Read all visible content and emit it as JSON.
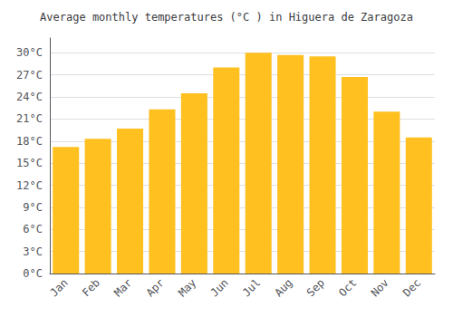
{
  "chart_data": {
    "type": "bar",
    "title": "Average monthly temperatures (°C ) in Higuera de Zaragoza",
    "categories": [
      "Jan",
      "Feb",
      "Mar",
      "Apr",
      "May",
      "Jun",
      "Jul",
      "Aug",
      "Sep",
      "Oct",
      "Nov",
      "Dec"
    ],
    "values": [
      17.2,
      18.3,
      19.7,
      22.3,
      24.5,
      28.0,
      30.0,
      29.7,
      29.5,
      26.7,
      22.0,
      18.5
    ],
    "color": "#FFC020",
    "ylim": [
      0,
      32
    ],
    "yticks": [
      {
        "value": 0,
        "label": "0°C"
      },
      {
        "value": 3,
        "label": "3°C"
      },
      {
        "value": 6,
        "label": "6°C"
      },
      {
        "value": 9,
        "label": "9°C"
      },
      {
        "value": 12,
        "label": "12°C"
      },
      {
        "value": 15,
        "label": "15°C"
      },
      {
        "value": 18,
        "label": "18°C"
      },
      {
        "value": 21,
        "label": "21°C"
      },
      {
        "value": 24,
        "label": "24°C"
      },
      {
        "value": 27,
        "label": "27°C"
      },
      {
        "value": 30,
        "label": "30°C"
      }
    ],
    "grid": true
  }
}
